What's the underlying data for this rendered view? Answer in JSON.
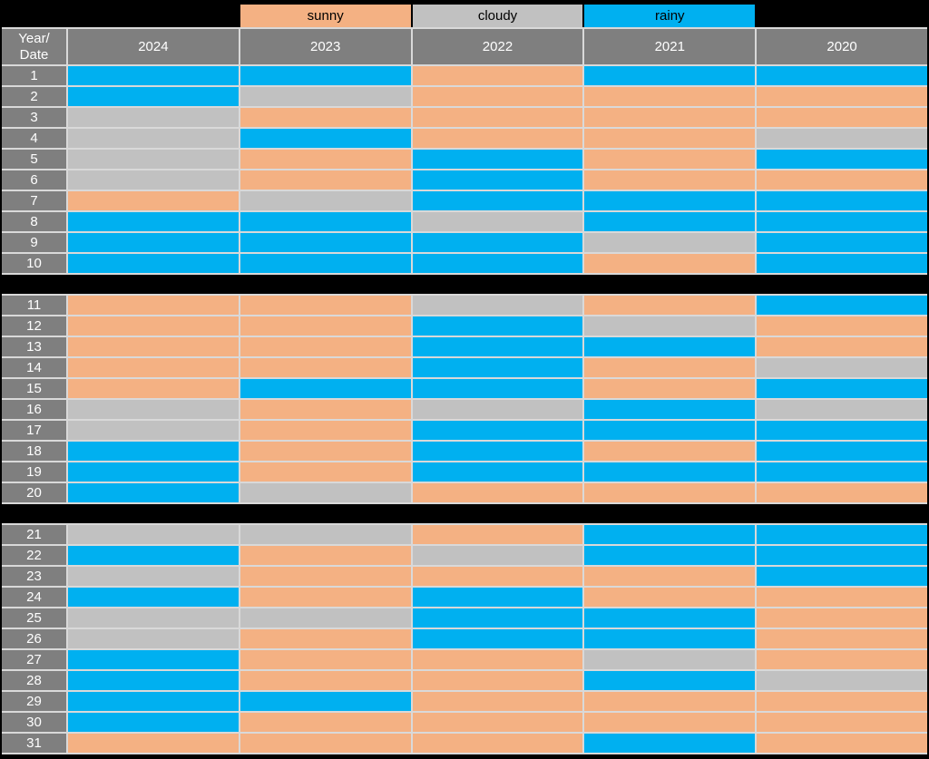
{
  "colors": {
    "background": "#000000",
    "header_bg": "#7F7F7F",
    "header_text": "#FFFFFF",
    "grid_line": "#D9D9D9"
  },
  "chart_data": {
    "type": "heatmap",
    "corner_label_line1": "Year/",
    "corner_label_line2": "Date",
    "columns": [
      "2024",
      "2023",
      "2022",
      "2021",
      "2020"
    ],
    "legend": [
      {
        "label": "sunny",
        "color": "#F4B183"
      },
      {
        "label": "cloudy",
        "color": "#C1C1C1"
      },
      {
        "label": "rainy",
        "color": "#00B0F0"
      }
    ],
    "row_groups": [
      {
        "rows": [
          {
            "date": "1",
            "values": [
              "rainy",
              "rainy",
              "sunny",
              "rainy",
              "rainy"
            ]
          },
          {
            "date": "2",
            "values": [
              "rainy",
              "cloudy",
              "sunny",
              "sunny",
              "sunny"
            ]
          },
          {
            "date": "3",
            "values": [
              "cloudy",
              "sunny",
              "sunny",
              "sunny",
              "sunny"
            ]
          },
          {
            "date": "4",
            "values": [
              "cloudy",
              "rainy",
              "sunny",
              "sunny",
              "cloudy"
            ]
          },
          {
            "date": "5",
            "values": [
              "cloudy",
              "sunny",
              "rainy",
              "sunny",
              "rainy"
            ]
          },
          {
            "date": "6",
            "values": [
              "cloudy",
              "sunny",
              "rainy",
              "sunny",
              "sunny"
            ]
          },
          {
            "date": "7",
            "values": [
              "sunny",
              "cloudy",
              "rainy",
              "rainy",
              "rainy"
            ]
          },
          {
            "date": "8",
            "values": [
              "rainy",
              "rainy",
              "cloudy",
              "rainy",
              "rainy"
            ]
          },
          {
            "date": "9",
            "values": [
              "rainy",
              "rainy",
              "rainy",
              "cloudy",
              "rainy"
            ]
          },
          {
            "date": "10",
            "values": [
              "rainy",
              "rainy",
              "rainy",
              "sunny",
              "rainy"
            ]
          }
        ]
      },
      {
        "rows": [
          {
            "date": "11",
            "values": [
              "sunny",
              "sunny",
              "cloudy",
              "sunny",
              "rainy"
            ]
          },
          {
            "date": "12",
            "values": [
              "sunny",
              "sunny",
              "rainy",
              "cloudy",
              "sunny"
            ]
          },
          {
            "date": "13",
            "values": [
              "sunny",
              "sunny",
              "rainy",
              "rainy",
              "sunny"
            ]
          },
          {
            "date": "14",
            "values": [
              "sunny",
              "sunny",
              "rainy",
              "sunny",
              "cloudy"
            ]
          },
          {
            "date": "15",
            "values": [
              "sunny",
              "rainy",
              "rainy",
              "sunny",
              "rainy"
            ]
          },
          {
            "date": "16",
            "values": [
              "cloudy",
              "sunny",
              "cloudy",
              "rainy",
              "cloudy"
            ]
          },
          {
            "date": "17",
            "values": [
              "cloudy",
              "sunny",
              "rainy",
              "rainy",
              "rainy"
            ]
          },
          {
            "date": "18",
            "values": [
              "rainy",
              "sunny",
              "rainy",
              "sunny",
              "rainy"
            ]
          },
          {
            "date": "19",
            "values": [
              "rainy",
              "sunny",
              "rainy",
              "rainy",
              "rainy"
            ]
          },
          {
            "date": "20",
            "values": [
              "rainy",
              "cloudy",
              "sunny",
              "sunny",
              "sunny"
            ]
          }
        ]
      },
      {
        "rows": [
          {
            "date": "21",
            "values": [
              "cloudy",
              "cloudy",
              "sunny",
              "rainy",
              "rainy"
            ]
          },
          {
            "date": "22",
            "values": [
              "rainy",
              "sunny",
              "cloudy",
              "rainy",
              "rainy"
            ]
          },
          {
            "date": "23",
            "values": [
              "cloudy",
              "sunny",
              "sunny",
              "sunny",
              "rainy"
            ]
          },
          {
            "date": "24",
            "values": [
              "rainy",
              "sunny",
              "rainy",
              "sunny",
              "sunny"
            ]
          },
          {
            "date": "25",
            "values": [
              "cloudy",
              "cloudy",
              "rainy",
              "rainy",
              "sunny"
            ]
          },
          {
            "date": "26",
            "values": [
              "cloudy",
              "sunny",
              "rainy",
              "rainy",
              "sunny"
            ]
          },
          {
            "date": "27",
            "values": [
              "rainy",
              "sunny",
              "sunny",
              "cloudy",
              "sunny"
            ]
          },
          {
            "date": "28",
            "values": [
              "rainy",
              "sunny",
              "sunny",
              "rainy",
              "cloudy"
            ]
          },
          {
            "date": "29",
            "values": [
              "rainy",
              "rainy",
              "sunny",
              "sunny",
              "sunny"
            ]
          },
          {
            "date": "30",
            "values": [
              "rainy",
              "sunny",
              "sunny",
              "sunny",
              "sunny"
            ]
          },
          {
            "date": "31",
            "values": [
              "sunny",
              "sunny",
              "sunny",
              "rainy",
              "sunny"
            ]
          }
        ]
      }
    ]
  }
}
